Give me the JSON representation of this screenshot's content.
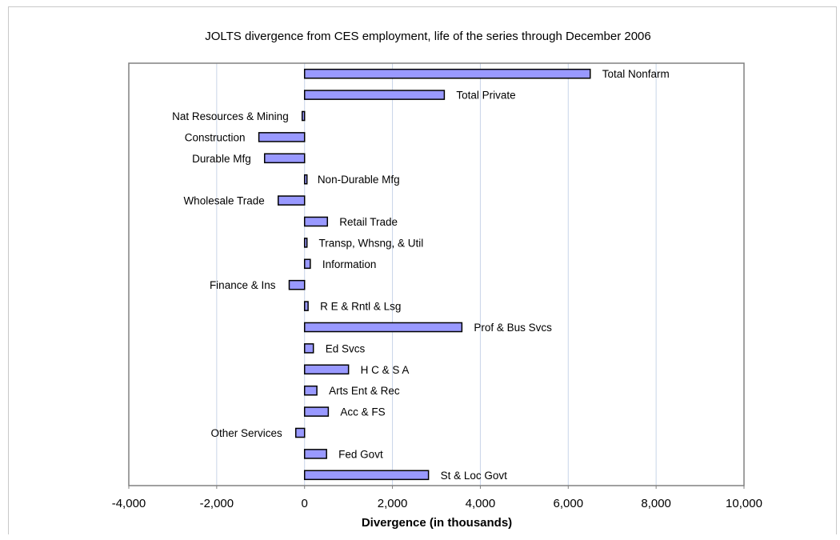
{
  "chart_data": {
    "type": "bar",
    "orientation": "horizontal",
    "title": "JOLTS divergence from CES employment, life of the series through December 2006",
    "xlabel": "Divergence (in thousands)",
    "ylabel": "",
    "xlim": [
      -4000,
      10000
    ],
    "x_ticks": [
      -4000,
      -2000,
      0,
      2000,
      4000,
      6000,
      8000,
      10000
    ],
    "x_tick_labels": [
      "-4,000",
      "-2,000",
      "0",
      "2,000",
      "4,000",
      "6,000",
      "8,000",
      "10,000"
    ],
    "grid": "vertical",
    "legend": "none",
    "bar_color": "#9999ff",
    "categories": [
      "Total Nonfarm",
      "Total Private",
      "Nat Resources & Mining",
      "Construction",
      "Durable Mfg",
      "Non-Durable Mfg",
      "Wholesale Trade",
      "Retail Trade",
      "Transp, Whsng, & Util",
      "Information",
      "Finance & Ins",
      "R E & Rntl & Lsg",
      "Prof & Bus Svcs",
      "Ed Svcs",
      "H C & S A",
      "Arts Ent & Rec",
      "Acc & FS",
      "Other Services",
      "Fed Govt",
      "St & Loc Govt"
    ],
    "values": [
      6500,
      3180,
      -30,
      -1040,
      -910,
      20,
      -600,
      520,
      50,
      130,
      -350,
      80,
      3580,
      200,
      1000,
      280,
      540,
      -200,
      500,
      2820
    ]
  }
}
